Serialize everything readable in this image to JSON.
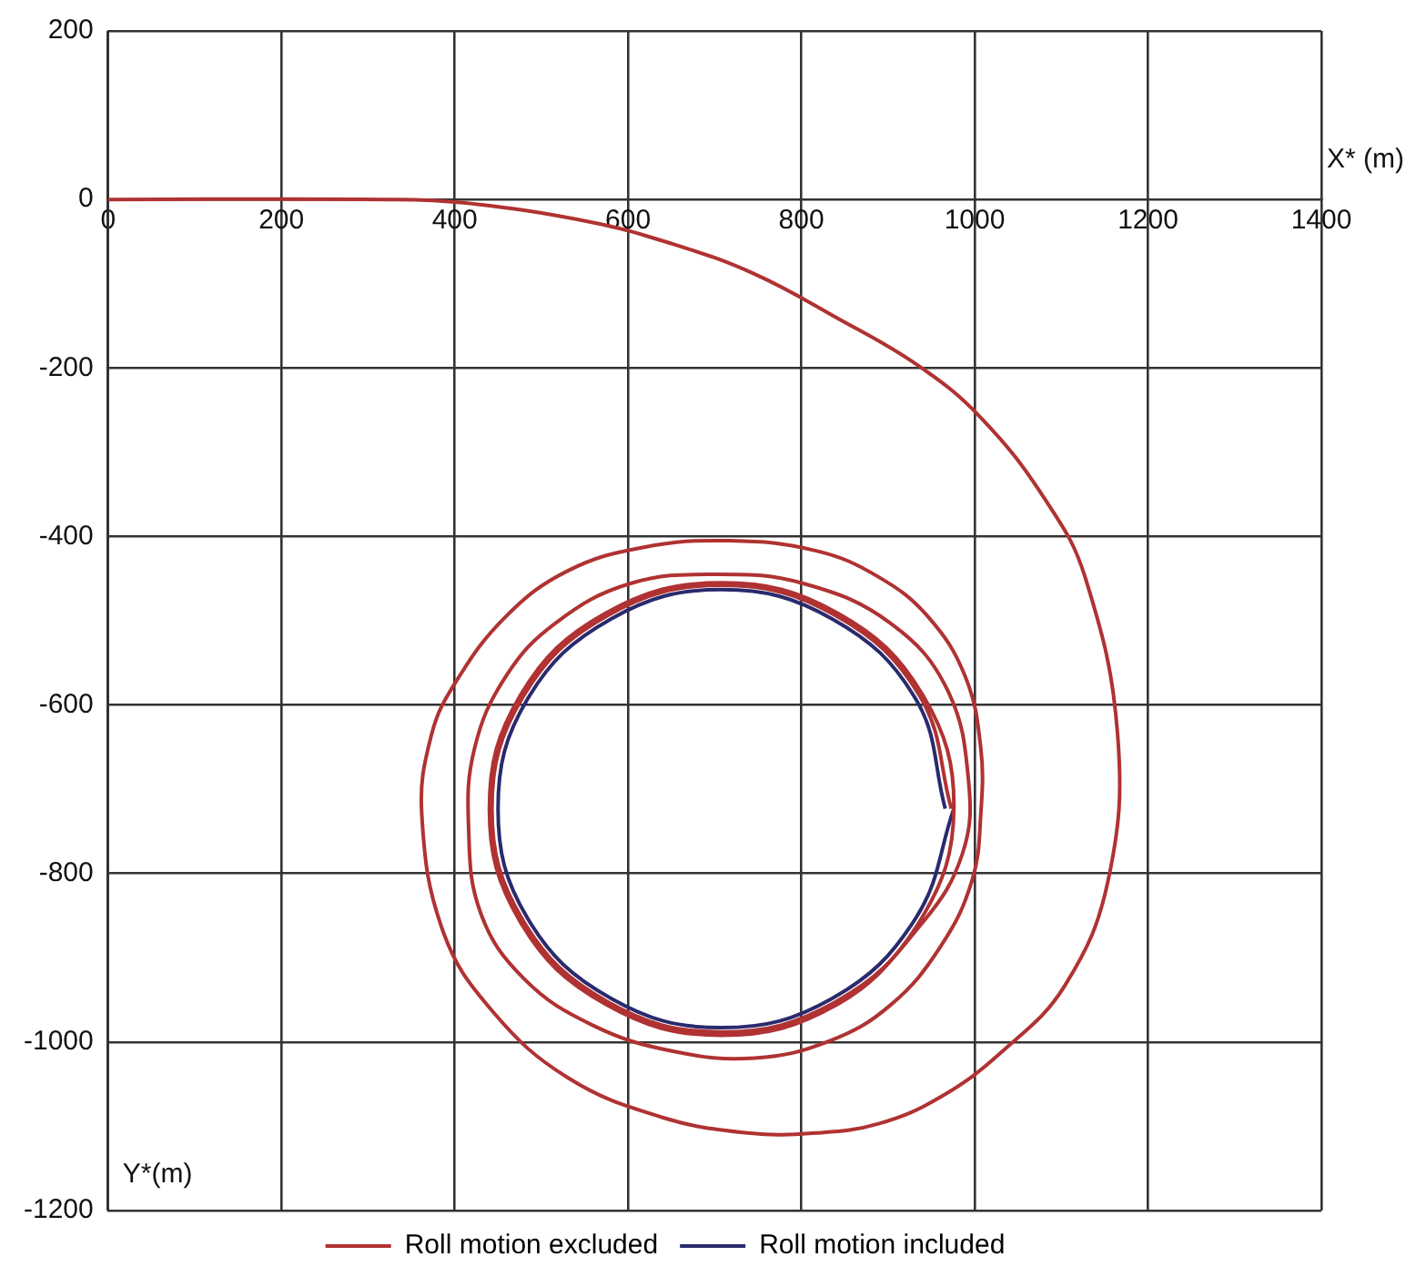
{
  "chart_data": {
    "type": "line",
    "xlabel": "X* (m)",
    "ylabel": "Y*(m)",
    "xlim": [
      0,
      1400
    ],
    "ylim": [
      -1200,
      200
    ],
    "xticks": [
      0,
      200,
      400,
      600,
      800,
      1000,
      1200,
      1400
    ],
    "yticks": [
      -1200,
      -1000,
      -800,
      -600,
      -400,
      -200,
      0,
      200
    ],
    "grid": true,
    "legend": "bottom",
    "marker": "none",
    "line_style": "solid",
    "series": [
      {
        "name": "Roll motion excluded",
        "color": "#b03232",
        "x": [
          0,
          319,
          410,
          553,
          649,
          745,
          840,
          936,
          1008,
          1080,
          1127,
          1165,
          1154,
          1104,
          1032,
          961,
          889,
          817,
          738,
          638,
          530,
          444,
          387,
          362,
          373,
          401,
          459,
          530,
          617,
          717,
          817,
          889,
          946,
          989,
          1007,
          1007,
          997,
          961,
          903,
          832,
          746,
          652,
          559,
          480,
          430,
          416,
          423,
          459,
          516,
          602,
          703,
          803,
          903,
          968,
          993,
          986,
          940,
          842,
          708,
          574,
          476,
          440,
          476,
          574,
          708,
          842,
          940,
          976,
          937,
          840,
          708,
          576,
          479,
          443,
          479,
          576,
          708,
          840,
          937,
          973
        ],
        "values": [
          0,
          0,
          -4,
          -26,
          -52,
          -88,
          -140,
          -198,
          -260,
          -354,
          -447,
          -636,
          -808,
          -933,
          -1011,
          -1065,
          -1097,
          -1108,
          -1108,
          -1089,
          -1042,
          -964,
          -870,
          -730,
          -636,
          -573,
          -495,
          -441,
          -413,
          -405,
          -417,
          -448,
          -495,
          -566,
          -651,
          -730,
          -808,
          -886,
          -956,
          -999,
          -1019,
          -1011,
          -980,
          -925,
          -847,
          -745,
          -651,
          -566,
          -503,
          -456,
          -445,
          -456,
          -503,
          -581,
          -691,
          -776,
          -858,
          -955,
          -992,
          -955,
          -858,
          -723,
          -588,
          -491,
          -455,
          -491,
          -588,
          -723,
          -856,
          -952,
          -988,
          -952,
          -856,
          -723,
          -590,
          -494,
          -458,
          -494,
          -590,
          -723
        ]
      },
      {
        "name": "Roll motion included",
        "color": "#2a2a6e",
        "x": [
          976,
          932,
          836,
          708,
          580,
          484,
          450,
          484,
          580,
          708,
          836,
          932,
          966
        ],
        "values": [
          -723,
          -853,
          -948,
          -983,
          -948,
          -853,
          -723,
          -593,
          -498,
          -463,
          -498,
          -593,
          -723
        ]
      }
    ]
  }
}
